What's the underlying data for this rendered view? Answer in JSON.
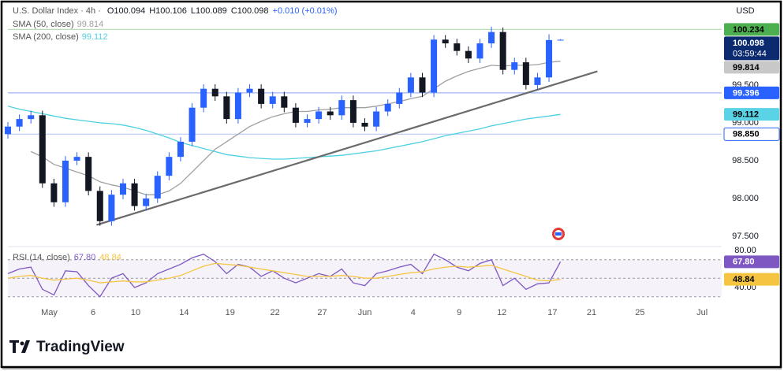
{
  "chart_data": [
    {
      "type": "candlestick",
      "title": "U.S. Dollar Index · 4h ·",
      "currency": "USD",
      "ohlc_text": [
        "O100.094",
        "H100.106",
        "L100.089",
        "C100.098",
        "+0.010 (+0.01%)"
      ],
      "x": [
        0,
        1,
        2,
        3,
        4,
        5,
        6,
        7,
        8,
        9,
        10,
        11,
        12,
        13,
        14,
        15,
        16,
        17,
        18,
        19,
        20,
        21,
        22,
        23,
        24,
        25,
        26,
        27,
        28,
        29,
        30,
        31,
        32,
        33,
        34,
        35,
        36,
        37,
        38,
        39,
        40,
        41,
        42,
        43,
        44,
        45,
        46,
        47,
        48
      ],
      "open": [
        98.85,
        98.95,
        99.05,
        99.1,
        98.2,
        97.95,
        98.5,
        98.55,
        98.1,
        97.7,
        98.05,
        98.2,
        97.9,
        98.0,
        98.3,
        98.55,
        98.75,
        99.2,
        99.45,
        99.35,
        99.05,
        99.4,
        99.45,
        99.25,
        99.35,
        99.2,
        99.0,
        99.05,
        99.15,
        99.1,
        99.3,
        99.0,
        98.95,
        99.15,
        99.25,
        99.4,
        99.6,
        99.4,
        100.1,
        100.05,
        99.95,
        99.85,
        100.05,
        100.2,
        99.7,
        99.8,
        99.5,
        99.6,
        100.094
      ],
      "high": [
        99.01,
        99.11,
        99.16,
        99.16,
        98.26,
        98.56,
        98.61,
        98.61,
        98.16,
        98.11,
        98.26,
        98.26,
        98.06,
        98.36,
        98.61,
        98.81,
        99.26,
        99.51,
        99.51,
        99.41,
        99.46,
        99.51,
        99.51,
        99.41,
        99.41,
        99.26,
        99.11,
        99.21,
        99.21,
        99.36,
        99.36,
        99.06,
        99.21,
        99.31,
        99.46,
        99.66,
        99.66,
        100.16,
        100.16,
        100.11,
        100.01,
        100.11,
        100.27,
        100.26,
        99.86,
        99.86,
        99.66,
        100.17,
        100.106
      ],
      "low": [
        98.79,
        98.89,
        98.99,
        98.14,
        97.89,
        97.89,
        98.44,
        98.04,
        97.64,
        97.64,
        97.99,
        97.84,
        97.84,
        97.94,
        98.24,
        98.49,
        98.69,
        99.14,
        99.29,
        98.99,
        98.99,
        99.34,
        99.19,
        99.19,
        99.14,
        98.94,
        98.94,
        98.99,
        99.04,
        99.04,
        98.94,
        98.89,
        98.89,
        99.09,
        99.19,
        99.34,
        99.34,
        99.34,
        99.99,
        99.89,
        99.79,
        99.79,
        99.99,
        99.64,
        99.64,
        99.44,
        99.44,
        99.54,
        100.089
      ],
      "close": [
        98.95,
        99.05,
        99.1,
        98.2,
        97.95,
        98.5,
        98.55,
        98.1,
        97.7,
        98.05,
        98.2,
        97.9,
        98.0,
        98.3,
        98.55,
        98.75,
        99.2,
        99.45,
        99.35,
        99.05,
        99.4,
        99.45,
        99.25,
        99.35,
        99.2,
        99.0,
        99.05,
        99.15,
        99.1,
        99.3,
        99.0,
        98.95,
        99.15,
        99.25,
        99.4,
        99.6,
        99.4,
        100.1,
        100.05,
        99.95,
        99.85,
        100.05,
        100.2,
        99.7,
        99.8,
        99.5,
        99.6,
        100.094,
        100.098
      ],
      "up_color": "#2962ff",
      "down_color": "#131722",
      "series": [
        {
          "name": "SMA (50, close)",
          "color": "#a0a0a0",
          "last": 99.814,
          "values": [
            null,
            null,
            98.62,
            98.55,
            98.45,
            98.4,
            98.35,
            98.3,
            98.22,
            98.18,
            98.15,
            98.1,
            98.05,
            98.05,
            98.1,
            98.2,
            98.35,
            98.5,
            98.65,
            98.75,
            98.85,
            98.95,
            99.02,
            99.08,
            99.12,
            99.15,
            99.15,
            99.17,
            99.18,
            99.2,
            99.2,
            99.2,
            99.22,
            99.25,
            99.28,
            99.32,
            99.35,
            99.45,
            99.55,
            99.62,
            99.68,
            99.72,
            99.76,
            99.75,
            99.76,
            99.76,
            99.77,
            99.8,
            99.814
          ]
        },
        {
          "name": "SMA (200, close)",
          "color": "#4dd0e1",
          "last": 99.112,
          "values": [
            99.22,
            99.18,
            99.15,
            99.12,
            99.09,
            99.06,
            99.04,
            99.02,
            99.0,
            98.99,
            98.97,
            98.94,
            98.9,
            98.85,
            98.8,
            98.74,
            98.7,
            98.66,
            98.62,
            98.58,
            98.56,
            98.54,
            98.53,
            98.52,
            98.52,
            98.53,
            98.54,
            98.55,
            98.56,
            98.57,
            98.59,
            98.61,
            98.63,
            98.66,
            98.69,
            98.72,
            98.75,
            98.79,
            98.83,
            98.86,
            98.89,
            98.92,
            98.96,
            98.99,
            99.02,
            99.05,
            99.07,
            99.09,
            99.112
          ]
        }
      ],
      "trendline": {
        "x": [
          7.7,
          51.2
        ],
        "y": [
          97.65,
          99.68
        ],
        "color": "#6b6b6b"
      },
      "levels": [
        {
          "value": 100.234,
          "color": "#4caf50",
          "text_color": "#000000",
          "line": "#b7dfb9"
        },
        {
          "value": 100.098,
          "color": "#0b2a6f",
          "text_color": "#ffffff",
          "countdown": "03:59:44"
        },
        {
          "value": 99.814,
          "color": "#c8c8c8",
          "text_color": "#000000"
        },
        {
          "value": 99.396,
          "color": "#2962ff",
          "text_color": "#ffffff",
          "line": "#9db5f5"
        },
        {
          "value": 99.112,
          "color": "#5ad3e6",
          "text_color": "#000000"
        },
        {
          "value": 98.85,
          "label": "98.850",
          "color": "#ffffff",
          "text_color": "#000000",
          "border": "#2962ff",
          "line": "#b8c9f7"
        }
      ],
      "xlim": [
        0,
        62
      ],
      "ylim": [
        97.375,
        100.54
      ],
      "yticks": [
        {
          "value": 97.5,
          "label": "97.500"
        },
        {
          "value": 98,
          "label": "98.000"
        },
        {
          "value": 98.5,
          "label": "98.500"
        },
        {
          "value": 99,
          "label": "99.000"
        },
        {
          "value": 99.5,
          "label": "99.500"
        }
      ],
      "xticks": [
        {
          "value": 3.6,
          "label": "May"
        },
        {
          "value": 7.4,
          "label": "6"
        },
        {
          "value": 11.1,
          "label": "10"
        },
        {
          "value": 15.3,
          "label": "14"
        },
        {
          "value": 19.3,
          "label": "19"
        },
        {
          "value": 23.2,
          "label": "22"
        },
        {
          "value": 27.3,
          "label": "27"
        },
        {
          "value": 31.0,
          "label": "Jun"
        },
        {
          "value": 35.2,
          "label": "4"
        },
        {
          "value": 39.2,
          "label": "9"
        },
        {
          "value": 42.9,
          "label": "12"
        },
        {
          "value": 47.3,
          "label": "17"
        },
        {
          "value": 50.7,
          "label": "21"
        },
        {
          "value": 54.9,
          "label": "25"
        },
        {
          "value": 60.3,
          "label": "Jul"
        }
      ]
    },
    {
      "type": "line",
      "title": "RSI (14, close)",
      "ylim": [
        28.9,
        81.7
      ],
      "yticks": [
        {
          "value": 80,
          "label": "80.00"
        },
        {
          "value": 40,
          "label": "40.00"
        }
      ],
      "bands": [
        30,
        50,
        70
      ],
      "band_color": "#7e57c2",
      "series": [
        {
          "color": "#7e57c2",
          "label_text_color": "#ffffff",
          "last": {
            "value": 67.8,
            "label": "67.80"
          },
          "values": [
            55,
            60,
            62,
            38,
            32,
            58,
            57,
            42,
            30,
            50,
            55,
            40,
            45,
            55,
            60,
            65,
            72,
            76,
            68,
            55,
            65,
            62,
            52,
            58,
            50,
            45,
            50,
            55,
            52,
            60,
            45,
            42,
            55,
            58,
            62,
            65,
            55,
            76,
            70,
            62,
            58,
            66,
            70,
            42,
            50,
            38,
            44,
            45,
            67.8
          ]
        },
        {
          "color": "#f5c542",
          "label_text_color": "#000000",
          "last": {
            "value": 48.84,
            "label": "48.84"
          },
          "values": [
            50,
            52,
            53,
            50,
            48,
            49,
            50,
            48,
            45,
            46,
            47,
            46,
            46,
            48,
            50,
            53,
            58,
            63,
            66,
            65,
            64,
            62,
            60,
            58,
            56,
            54,
            52,
            52,
            52,
            53,
            52,
            50,
            50,
            52,
            54,
            56,
            57,
            60,
            62,
            63,
            62,
            63,
            64,
            60,
            56,
            52,
            48,
            47,
            48.84
          ]
        }
      ]
    }
  ],
  "brand": "TradingView"
}
